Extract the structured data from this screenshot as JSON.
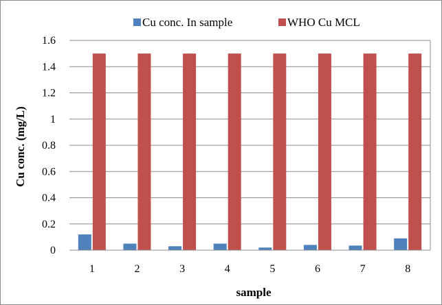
{
  "chart_data": {
    "type": "bar",
    "categories": [
      "1",
      "2",
      "3",
      "4",
      "5",
      "6",
      "7",
      "8"
    ],
    "series": [
      {
        "name": "Cu conc. In sample",
        "color": "#4f81bd",
        "values": [
          0.12,
          0.05,
          0.03,
          0.05,
          0.02,
          0.04,
          0.035,
          0.09
        ]
      },
      {
        "name": "WHO Cu MCL",
        "color": "#c0504d",
        "values": [
          1.5,
          1.5,
          1.5,
          1.5,
          1.5,
          1.5,
          1.5,
          1.5
        ]
      }
    ],
    "title": "",
    "xlabel": "sample",
    "ylabel": "Cu conc. (mg/L)",
    "ylim": [
      0,
      1.6
    ],
    "yticks": [
      "0",
      "0.2",
      "0.4",
      "0.6",
      "0.8",
      "1",
      "1.2",
      "1.4",
      "1.6"
    ],
    "grid": true,
    "legend_position": "top"
  }
}
